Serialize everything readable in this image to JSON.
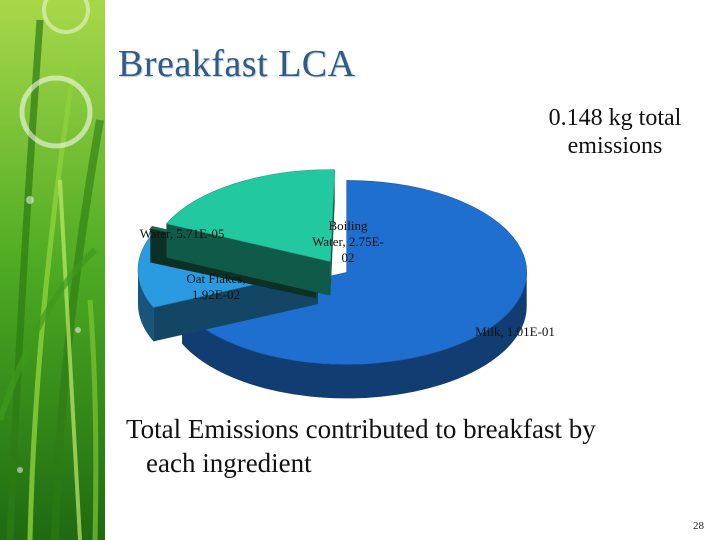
{
  "slide": {
    "title": "Breakfast LCA",
    "subtitle": "0.148 kg total emissions",
    "caption_line1": "Total Emissions contributed to breakfast by",
    "caption_line2": "each ingredient",
    "page_number": "28"
  },
  "chart_data": {
    "type": "pie",
    "style": "3d-exploded",
    "title": "",
    "total_label": "0.148 kg total emissions",
    "categories": [
      "Milk",
      "Oat Flakes",
      "Water",
      "Boiling Water"
    ],
    "values": [
      0.101,
      0.0192,
      5.71e-05,
      0.0275
    ],
    "data_labels": [
      "Milk, 1.01E-01",
      "Oat Flakes, 1.92E-02",
      "Water, 5.71E-05",
      "Boiling Water, 2.75E-02"
    ],
    "colors": [
      "#1f6fd0",
      "#2a9be0",
      "#1a6b4e",
      "#22c8a0"
    ],
    "legend": "none"
  }
}
